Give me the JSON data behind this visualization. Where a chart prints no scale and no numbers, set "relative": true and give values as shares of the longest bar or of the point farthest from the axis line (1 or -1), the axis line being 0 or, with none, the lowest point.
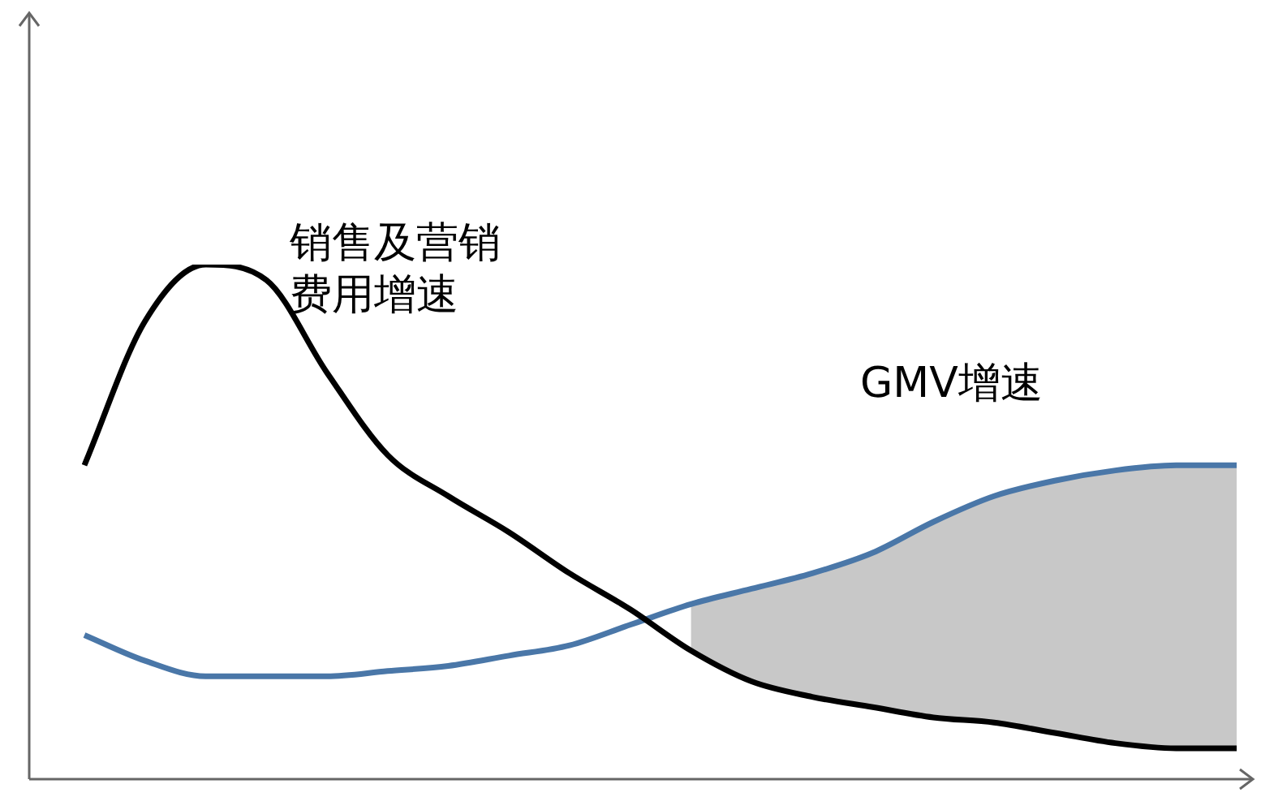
{
  "chart_data": {
    "type": "line",
    "relative": true,
    "legend": false,
    "grid": false,
    "marker": "none",
    "categories": [
      null,
      null,
      null,
      null,
      null,
      null,
      null,
      null,
      null,
      null,
      null,
      null,
      null,
      null,
      null,
      null,
      null,
      null,
      null,
      null
    ],
    "series": [
      {
        "name": "销售及营销费用增速",
        "color": "#000000",
        "values": [
          0.61,
          0.89,
          1,
          0.97,
          0.79,
          0.63,
          0.55,
          0.48,
          0.4,
          0.33,
          0.25,
          0.19,
          0.16,
          0.14,
          0.12,
          0.11,
          0.09,
          0.07,
          0.06,
          0.06
        ]
      },
      {
        "name": "GMV增速",
        "color": "#4a77a8",
        "values": [
          0.28,
          0.23,
          0.2,
          0.2,
          0.2,
          0.21,
          0.22,
          0.24,
          0.26,
          0.3,
          0.34,
          0.37,
          0.4,
          0.44,
          0.5,
          0.55,
          0.58,
          0.6,
          0.61,
          0.61
        ],
        "lower": [
          null,
          null,
          null,
          null,
          null,
          null,
          null,
          null,
          null,
          null,
          0.25,
          0.19,
          0.16,
          0.14,
          0.12,
          0.11,
          0.09,
          0.07,
          0.06,
          0.06
        ],
        "upper": [
          null,
          null,
          null,
          null,
          null,
          null,
          null,
          null,
          null,
          null,
          0.34,
          0.37,
          0.4,
          0.44,
          0.5,
          0.55,
          0.58,
          0.6,
          0.61,
          0.61
        ]
      }
    ]
  }
}
